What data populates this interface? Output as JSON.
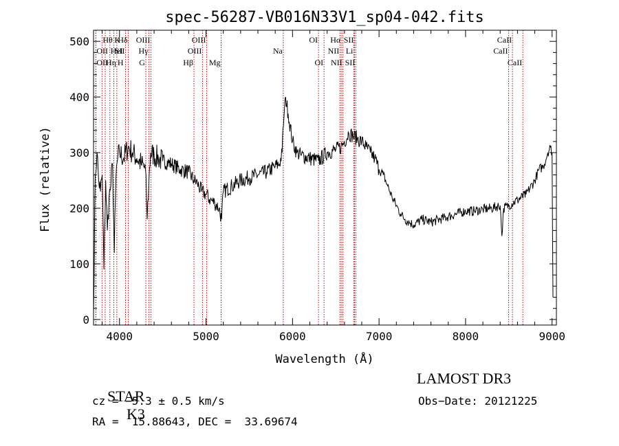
{
  "chart_data": {
    "type": "line",
    "title": "spec-56287-VB016N33V1_sp04-042.fits",
    "xlabel": "Wavelength (Å)",
    "ylabel": "Flux (relative)",
    "xlim": [
      3700,
      9050
    ],
    "ylim": [
      -10,
      520
    ],
    "xticks": [
      4000,
      5000,
      6000,
      7000,
      8000,
      9000
    ],
    "yticks": [
      0,
      100,
      200,
      300,
      400,
      500
    ],
    "grid": false,
    "line_color": "#000000",
    "marker_color": "#c00000",
    "spectrum": {
      "x": [
        3700,
        3720,
        3740,
        3760,
        3780,
        3800,
        3820,
        3840,
        3860,
        3880,
        3900,
        3920,
        3940,
        3960,
        3980,
        4000,
        4050,
        4100,
        4150,
        4200,
        4250,
        4300,
        4320,
        4340,
        4360,
        4400,
        4450,
        4500,
        4600,
        4700,
        4800,
        4860,
        4900,
        4950,
        5000,
        5050,
        5100,
        5150,
        5180,
        5200,
        5300,
        5400,
        5500,
        5600,
        5700,
        5800,
        5850,
        5880,
        5890,
        5900,
        5920,
        5950,
        6000,
        6050,
        6100,
        6200,
        6300,
        6400,
        6500,
        6560,
        6600,
        6650,
        6700,
        6750,
        6800,
        6850,
        6900,
        6950,
        7000,
        7050,
        7100,
        7150,
        7200,
        7250,
        7300,
        7350,
        7400,
        7500,
        7600,
        7700,
        7800,
        7900,
        8000,
        8100,
        8200,
        8300,
        8400,
        8420,
        8440,
        8500,
        8600,
        8700,
        8800,
        8850,
        8900,
        8950,
        8980,
        9000,
        9010
      ],
      "y": [
        10,
        260,
        300,
        250,
        230,
        260,
        90,
        250,
        160,
        220,
        240,
        280,
        120,
        260,
        290,
        300,
        290,
        310,
        300,
        290,
        280,
        270,
        180,
        250,
        300,
        295,
        290,
        285,
        280,
        270,
        265,
        250,
        245,
        230,
        225,
        215,
        210,
        200,
        180,
        230,
        240,
        250,
        255,
        260,
        265,
        275,
        280,
        300,
        345,
        360,
        400,
        370,
        320,
        300,
        295,
        290,
        285,
        300,
        305,
        310,
        320,
        335,
        330,
        325,
        320,
        310,
        300,
        290,
        270,
        260,
        240,
        220,
        205,
        190,
        180,
        175,
        170,
        180,
        175,
        180,
        185,
        190,
        195,
        195,
        198,
        200,
        205,
        150,
        200,
        205,
        215,
        225,
        250,
        270,
        275,
        300,
        310,
        300,
        40
      ]
    },
    "line_markers": [
      {
        "label": "Hθ",
        "x": 3798,
        "row": 0,
        "side": "right"
      },
      {
        "label": "OII",
        "x": 3727,
        "row": 1,
        "side": "right"
      },
      {
        "label": "OII",
        "x": 3727,
        "row": 2,
        "side": "right"
      },
      {
        "label": "HeI",
        "x": 3889,
        "row": 1,
        "side": "right"
      },
      {
        "label": "Hη",
        "x": 3835,
        "row": 2,
        "side": "right"
      },
      {
        "label": "K",
        "x": 3934,
        "row": 0,
        "side": "right"
      },
      {
        "label": "SII",
        "x": 4070,
        "row": 1,
        "side": "left"
      },
      {
        "label": "H",
        "x": 3969,
        "row": 2,
        "side": "right"
      },
      {
        "label": "Hδ",
        "x": 4102,
        "row": 0,
        "side": "left"
      },
      {
        "label": "OIII",
        "x": 4363,
        "row": 0,
        "side": "left"
      },
      {
        "label": "Hγ",
        "x": 4340,
        "row": 1,
        "side": "left"
      },
      {
        "label": "G",
        "x": 4304,
        "row": 2,
        "side": "left"
      },
      {
        "label": "Hβ",
        "x": 4861,
        "row": 2,
        "side": "left"
      },
      {
        "label": "OIII",
        "x": 5007,
        "row": 0,
        "side": "left"
      },
      {
        "label": "OIII",
        "x": 4959,
        "row": 1,
        "side": "left"
      },
      {
        "label": "Mg",
        "x": 5175,
        "row": 2,
        "side": "left"
      },
      {
        "label": "Na",
        "x": 5893,
        "row": 1,
        "side": "left"
      },
      {
        "label": "OI",
        "x": 6300,
        "row": 0,
        "side": "left"
      },
      {
        "label": "OI",
        "x": 6364,
        "row": 2,
        "side": "left"
      },
      {
        "label": "Hα",
        "x": 6563,
        "row": 0,
        "side": "left"
      },
      {
        "label": "SII",
        "x": 6716,
        "row": 0,
        "side": "left"
      },
      {
        "label": "NII",
        "x": 6548,
        "row": 1,
        "side": "left"
      },
      {
        "label": "Li",
        "x": 6708,
        "row": 1,
        "side": "left"
      },
      {
        "label": "NII",
        "x": 6583,
        "row": 2,
        "side": "left"
      },
      {
        "label": "SII",
        "x": 6731,
        "row": 2,
        "side": "left"
      },
      {
        "label": "CaII",
        "x": 8542,
        "row": 0,
        "side": "left"
      },
      {
        "label": "CaII",
        "x": 8498,
        "row": 1,
        "side": "left"
      },
      {
        "label": "CaII",
        "x": 8662,
        "row": 2,
        "side": "left"
      }
    ]
  },
  "footer": {
    "class_label": "STAR",
    "subclass": "K3",
    "survey": "LAMOST DR3",
    "cz": "cz = −5.3 ± 0.5 km/s",
    "obs_date": "Obs−Date: 20121225",
    "coords": "RA =  15.88643, DEC =  33.69674"
  }
}
